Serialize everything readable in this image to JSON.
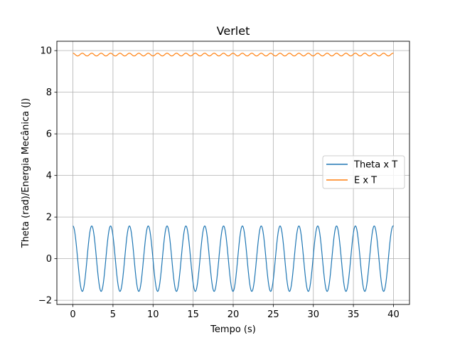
{
  "chart_data": {
    "type": "line",
    "title": "Verlet",
    "xlabel": "Tempo (s)",
    "ylabel": "Theta (rad)/Energia Mecânica (J)",
    "xlim": [
      -2,
      42
    ],
    "ylim": [
      -2.2,
      10.45
    ],
    "xticks": [
      0,
      5,
      10,
      15,
      20,
      25,
      30,
      35,
      40
    ],
    "yticks": [
      -2,
      0,
      2,
      4,
      6,
      8,
      10
    ],
    "grid": true,
    "legend_position": "center-right",
    "series": [
      {
        "name": "Theta x T",
        "color": "#1f77b4",
        "function": "theta",
        "amplitude": 1.5708,
        "period": 2.35,
        "x_range": [
          0,
          40
        ]
      },
      {
        "name": "E x T",
        "color": "#ff7f0e",
        "function": "energy",
        "mean": 9.81,
        "amplitude": 0.065,
        "period": 1.175,
        "x_range": [
          0,
          40
        ]
      }
    ]
  }
}
